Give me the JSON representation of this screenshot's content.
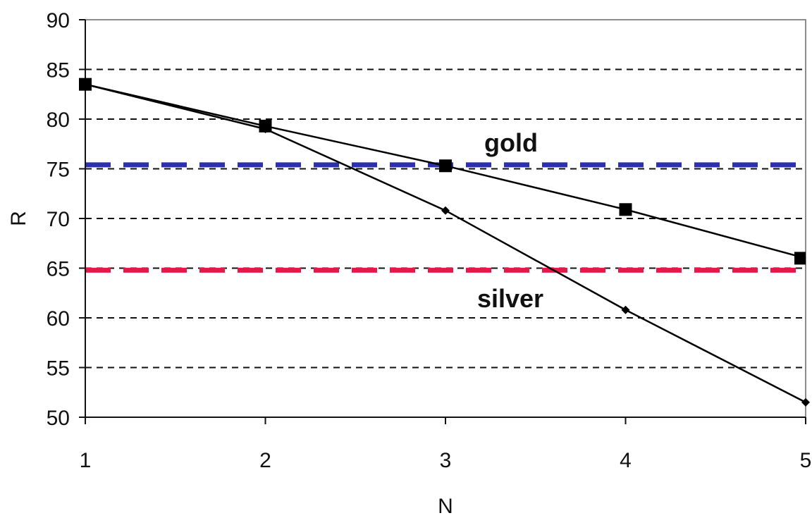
{
  "chart_data": {
    "type": "line",
    "xlabel": "N",
    "ylabel": "R",
    "xlim": [
      1,
      5
    ],
    "ylim": [
      50,
      90
    ],
    "x_ticks": [
      1,
      2,
      3,
      4,
      5
    ],
    "y_ticks": [
      50,
      55,
      60,
      65,
      70,
      75,
      80,
      85,
      90
    ],
    "grid": "horizontal dashed",
    "series": [
      {
        "marker": "square",
        "color": "#000000",
        "x": [
          1,
          2,
          3,
          4,
          5
        ],
        "values": [
          83.5,
          79.3,
          75.3,
          70.9,
          66.0
        ]
      },
      {
        "marker": "diamond",
        "color": "#000000",
        "x": [
          1,
          2,
          3,
          4,
          5
        ],
        "values": [
          83.5,
          79.0,
          70.8,
          60.8,
          51.5
        ]
      }
    ],
    "reference_lines": [
      {
        "label": "gold",
        "y": 75.4,
        "color": "#2b2fb0",
        "style": "dashed"
      },
      {
        "label": "silver",
        "y": 64.8,
        "color": "#e8174a",
        "style": "dashed"
      }
    ]
  }
}
